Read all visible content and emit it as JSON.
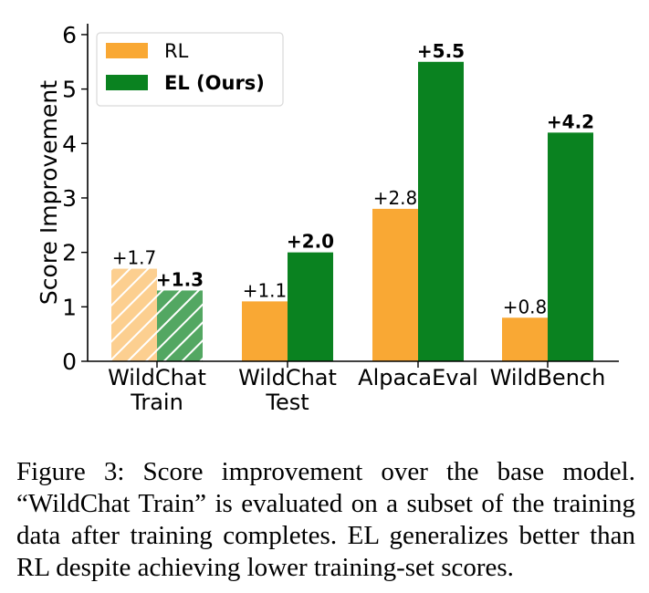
{
  "chart_data": {
    "type": "bar",
    "categories": [
      [
        "WildChat",
        "Train"
      ],
      [
        "WildChat",
        "Test"
      ],
      [
        "AlpacaEval"
      ],
      [
        "WildBench"
      ]
    ],
    "series": [
      {
        "name": "RL",
        "color": "#F9A834",
        "values": [
          1.7,
          1.1,
          2.8,
          0.8
        ],
        "labels": [
          "+1.7",
          "+1.1",
          "+2.8",
          "+0.8"
        ]
      },
      {
        "name": "EL (Ours)",
        "color": "#0A8220",
        "values": [
          1.3,
          2.0,
          5.5,
          4.2
        ],
        "labels": [
          "+1.3",
          "+2.0",
          "+5.5",
          "+4.2"
        ]
      }
    ],
    "hatched_categories": [
      0
    ],
    "ylabel": "Score Improvement",
    "ylim": [
      0,
      6.2
    ],
    "yticks": [
      "0",
      "1",
      "2",
      "3",
      "4",
      "5",
      "6"
    ],
    "legend_position": "top-left",
    "grid": false
  },
  "caption": {
    "label": "Figure 3:",
    "text": "Score improvement over the base model. “WildChat Train” is evaluated on a subset of the training data after training completes. EL generalizes better than RL despite achieving lower training-set scores."
  }
}
